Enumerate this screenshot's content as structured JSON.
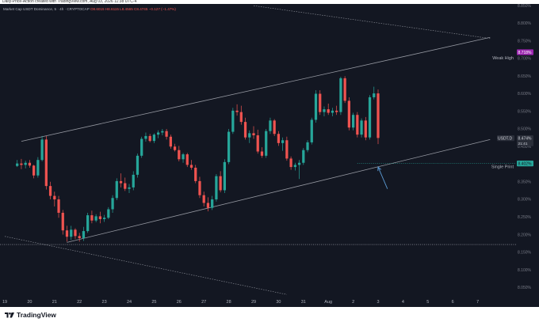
{
  "watermark": "Daily-Price-Action created with TradingView.com, Aug 03, 2026 11:38 UTC-4",
  "header": {
    "symbol": "Market Cap USDT Dominance, 5 · 4h · CRYPTOCAP",
    "ohlc": "O8.6015 H8.6115 L8.4565 C8.4745 −0.127 (−1.47%)"
  },
  "footer": {
    "brand": "TradingView"
  },
  "colors": {
    "background": "#131722",
    "up": "#26a69a",
    "down": "#ef5350",
    "price_label": "#2a2e39",
    "weak_high_label": "#9c27b0",
    "single_print_label": "#26a69a",
    "single_print_line": "#26a69a",
    "channel_line": "#9598a1"
  },
  "chart_data": {
    "type": "candlestick",
    "title": "Market Cap USDT Dominance, 5, 4h",
    "xlabel": "",
    "ylabel": "",
    "ylim": [
      8.035,
      8.855
    ],
    "yticks": [
      "8.850%",
      "8.800%",
      "8.750%",
      "8.700%",
      "8.650%",
      "8.600%",
      "8.550%",
      "8.500%",
      "8.450%",
      "8.400%",
      "8.350%",
      "8.300%",
      "8.250%",
      "8.200%",
      "8.150%",
      "8.100%",
      "8.050%"
    ],
    "xticks": [
      "19",
      "20",
      "21",
      "22",
      "23",
      "24",
      "25",
      "26",
      "27",
      "28",
      "29",
      "30",
      "31",
      "Aug",
      "2",
      "3",
      "4",
      "5",
      "6",
      "7"
    ],
    "candles": [
      [
        8.395,
        8.412,
        8.392,
        8.402
      ],
      [
        8.402,
        8.415,
        8.386,
        8.398
      ],
      [
        8.398,
        8.41,
        8.388,
        8.404
      ],
      [
        8.404,
        8.412,
        8.39,
        8.396
      ],
      [
        8.396,
        8.398,
        8.36,
        8.368
      ],
      [
        8.368,
        8.42,
        8.362,
        8.412
      ],
      [
        8.412,
        8.48,
        8.408,
        8.47
      ],
      [
        8.47,
        8.48,
        8.328,
        8.338
      ],
      [
        8.338,
        8.35,
        8.3,
        8.31
      ],
      [
        8.31,
        8.322,
        8.28,
        8.3
      ],
      [
        8.3,
        8.31,
        8.248,
        8.262
      ],
      [
        8.262,
        8.27,
        8.2,
        8.212
      ],
      [
        8.212,
        8.225,
        8.18,
        8.194
      ],
      [
        8.194,
        8.225,
        8.185,
        8.214
      ],
      [
        8.214,
        8.218,
        8.188,
        8.196
      ],
      [
        8.196,
        8.205,
        8.18,
        8.19
      ],
      [
        8.19,
        8.222,
        8.182,
        8.21
      ],
      [
        8.21,
        8.262,
        8.205,
        8.255
      ],
      [
        8.255,
        8.268,
        8.232,
        8.24
      ],
      [
        8.24,
        8.258,
        8.235,
        8.252
      ],
      [
        8.252,
        8.265,
        8.232,
        8.244
      ],
      [
        8.244,
        8.256,
        8.236,
        8.248
      ],
      [
        8.248,
        8.278,
        8.244,
        8.272
      ],
      [
        8.272,
        8.312,
        8.262,
        8.304
      ],
      [
        8.304,
        8.36,
        8.298,
        8.352
      ],
      [
        8.352,
        8.374,
        8.334,
        8.346
      ],
      [
        8.346,
        8.362,
        8.324,
        8.33
      ],
      [
        8.33,
        8.344,
        8.318,
        8.334
      ],
      [
        8.334,
        8.38,
        8.326,
        8.37
      ],
      [
        8.37,
        8.43,
        8.362,
        8.424
      ],
      [
        8.424,
        8.478,
        8.418,
        8.472
      ],
      [
        8.472,
        8.49,
        8.464,
        8.48
      ],
      [
        8.48,
        8.486,
        8.462,
        8.466
      ],
      [
        8.466,
        8.488,
        8.46,
        8.484
      ],
      [
        8.484,
        8.496,
        8.474,
        8.49
      ],
      [
        8.49,
        8.5,
        8.482,
        8.494
      ],
      [
        8.494,
        8.5,
        8.47,
        8.478
      ],
      [
        8.478,
        8.484,
        8.444,
        8.45
      ],
      [
        8.45,
        8.458,
        8.436,
        8.44
      ],
      [
        8.44,
        8.452,
        8.408,
        8.414
      ],
      [
        8.414,
        8.432,
        8.404,
        8.428
      ],
      [
        8.428,
        8.432,
        8.392,
        8.398
      ],
      [
        8.398,
        8.412,
        8.384,
        8.39
      ],
      [
        8.39,
        8.398,
        8.346,
        8.352
      ],
      [
        8.352,
        8.364,
        8.304,
        8.312
      ],
      [
        8.312,
        8.322,
        8.28,
        8.29
      ],
      [
        8.29,
        8.306,
        8.266,
        8.276
      ],
      [
        8.276,
        8.31,
        8.27,
        8.3
      ],
      [
        8.3,
        8.372,
        8.294,
        8.366
      ],
      [
        8.366,
        8.38,
        8.32,
        8.326
      ],
      [
        8.326,
        8.414,
        8.318,
        8.406
      ],
      [
        8.406,
        8.5,
        8.4,
        8.492
      ],
      [
        8.492,
        8.56,
        8.486,
        8.552
      ],
      [
        8.552,
        8.57,
        8.538,
        8.548
      ],
      [
        8.548,
        8.566,
        8.512,
        8.52
      ],
      [
        8.52,
        8.532,
        8.47,
        8.476
      ],
      [
        8.476,
        8.496,
        8.46,
        8.488
      ],
      [
        8.488,
        8.508,
        8.472,
        8.482
      ],
      [
        8.482,
        8.498,
        8.43,
        8.436
      ],
      [
        8.436,
        8.448,
        8.418,
        8.424
      ],
      [
        8.424,
        8.5,
        8.418,
        8.494
      ],
      [
        8.494,
        8.532,
        8.486,
        8.524
      ],
      [
        8.524,
        8.528,
        8.48,
        8.486
      ],
      [
        8.486,
        8.494,
        8.452,
        8.46
      ],
      [
        8.46,
        8.476,
        8.438,
        8.468
      ],
      [
        8.468,
        8.478,
        8.41,
        8.416
      ],
      [
        8.416,
        8.422,
        8.384,
        8.392
      ],
      [
        8.392,
        8.404,
        8.382,
        8.398
      ],
      [
        8.398,
        8.412,
        8.358,
        8.404
      ],
      [
        8.404,
        8.446,
        8.398,
        8.44
      ],
      [
        8.44,
        8.468,
        8.434,
        8.462
      ],
      [
        8.462,
        8.532,
        8.456,
        8.526
      ],
      [
        8.526,
        8.61,
        8.518,
        8.6
      ],
      [
        8.6,
        8.61,
        8.54,
        8.548
      ],
      [
        8.548,
        8.564,
        8.536,
        8.556
      ],
      [
        8.556,
        8.572,
        8.54,
        8.546
      ],
      [
        8.546,
        8.56,
        8.536,
        8.552
      ],
      [
        8.552,
        8.566,
        8.54,
        8.548
      ],
      [
        8.548,
        8.648,
        8.54,
        8.644
      ],
      [
        8.644,
        8.65,
        8.574,
        8.58
      ],
      [
        8.58,
        8.59,
        8.496,
        8.504
      ],
      [
        8.504,
        8.546,
        8.496,
        8.54
      ],
      [
        8.54,
        8.548,
        8.476,
        8.484
      ],
      [
        8.484,
        8.53,
        8.476,
        8.524
      ],
      [
        8.524,
        8.534,
        8.468,
        8.476
      ],
      [
        8.476,
        8.596,
        8.47,
        8.59
      ],
      [
        8.59,
        8.62,
        8.584,
        8.601
      ],
      [
        8.601,
        8.612,
        8.457,
        8.4745
      ]
    ],
    "last_price": "8.474%",
    "last_price_countdown": "21:41",
    "weak_high": {
      "label": "Weak High",
      "value": 8.718,
      "value_label": "8.718%"
    },
    "single_print": {
      "label": "Single Print",
      "value": 8.402,
      "value_label": "8.402%"
    },
    "support_level": 8.172,
    "channel": {
      "upper": [
        [
          "19:16",
          8.465
        ],
        [
          "7:12",
          8.76
        ]
      ],
      "lower": [
        [
          "21:12",
          8.178
        ],
        [
          "7:12",
          8.47
        ]
      ],
      "outer_top": [
        [
          "29:00",
          8.85
        ],
        [
          "7:12",
          8.757
        ]
      ],
      "outer_bottom": [
        [
          "19:00",
          8.195
        ],
        [
          "30:08",
          8.03
        ]
      ]
    },
    "arrow_note": "arrow pointing up to the lower channel line near Aug 3-4"
  }
}
